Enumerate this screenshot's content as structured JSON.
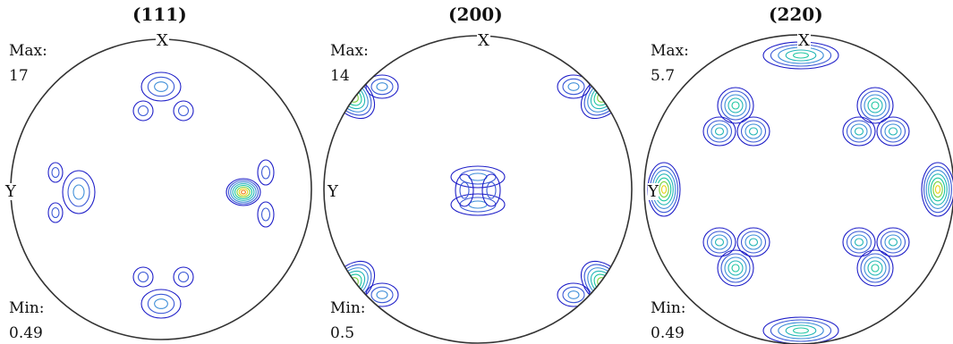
{
  "chart_data": [
    {
      "type": "pole-figure",
      "title": "(111)",
      "max_label": "Max:",
      "max_value": "17",
      "min_label": "Min:",
      "min_value": "0.49",
      "x_label": "X",
      "y_label": "Y",
      "peaks": [
        [
          0.95,
          -0.02,
          0.35
        ]
      ]
    },
    {
      "type": "pole-figure",
      "title": "(200)",
      "max_label": "Max:",
      "max_value": "14",
      "min_label": "Min:",
      "min_value": "0.5",
      "x_label": "X",
      "y_label": "Y",
      "peaks": [
        [
          0.99,
          0.75,
          0.6
        ],
        [
          -0.99,
          0.75,
          0.6
        ],
        [
          0.99,
          -0.75,
          0.6
        ],
        [
          -0.99,
          -0.75,
          0.6
        ]
      ]
    },
    {
      "type": "pole-figure",
      "title": "(220)",
      "max_label": "Max:",
      "max_value": "5.7",
      "min_label": "Min:",
      "min_value": "0.49",
      "x_label": "X",
      "y_label": "Y",
      "peaks": [
        [
          -1.0,
          0.0,
          0.3
        ],
        [
          1.0,
          0.0,
          0.3
        ]
      ]
    }
  ],
  "colors": {
    "outline": "#333333",
    "contour_scale": [
      "#1e1ec8",
      "#3b59d6",
      "#3e8ed8",
      "#22b6b6",
      "#1bc6a0",
      "#7ad23c",
      "#e8d21a",
      "#f07a10",
      "#e81818"
    ]
  }
}
